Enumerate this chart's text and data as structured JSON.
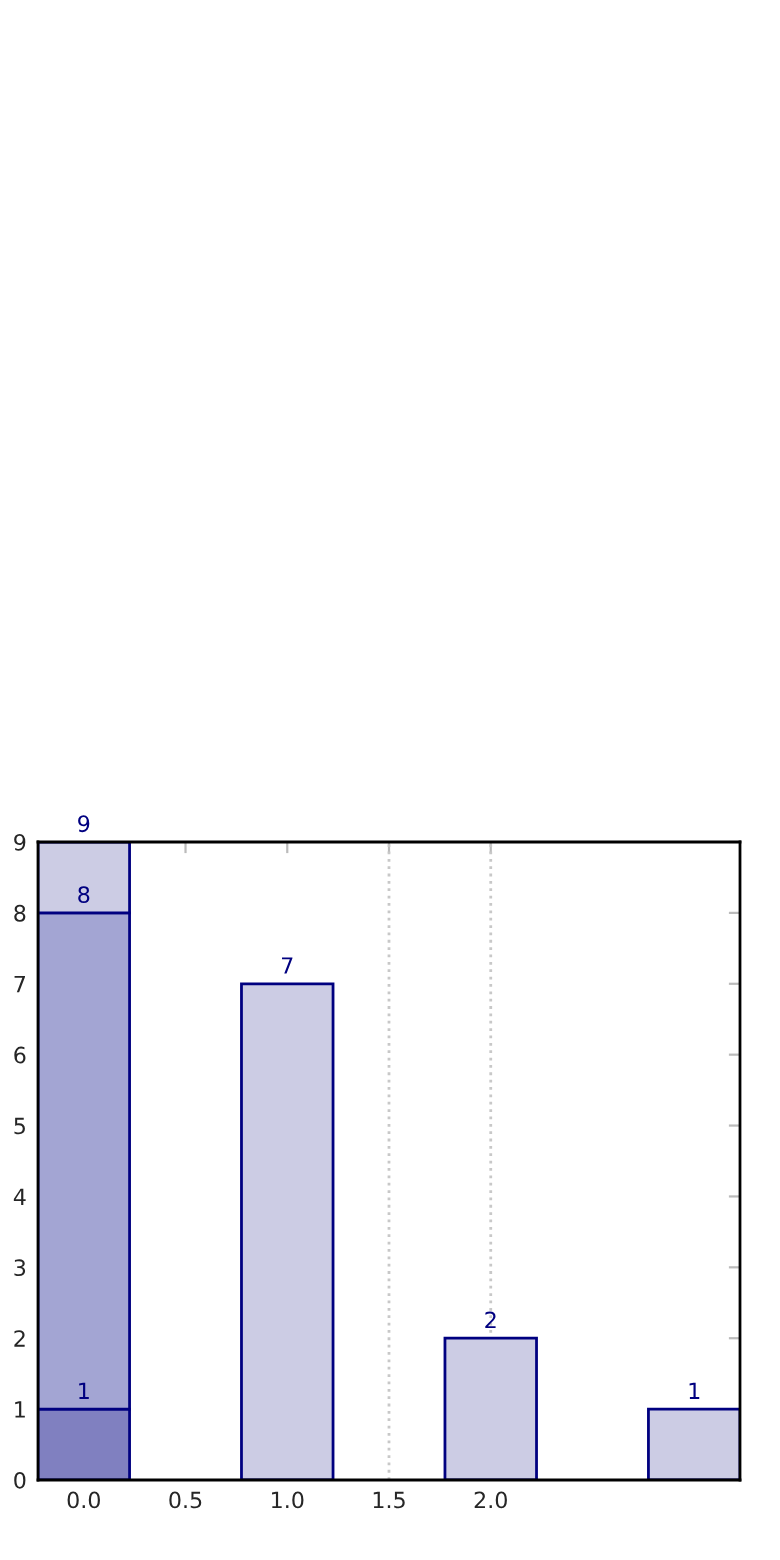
{
  "chart_data": {
    "type": "bar",
    "stacked": true,
    "series": [
      {
        "x": [
          0
        ],
        "values": [
          1
        ],
        "color": "#8080c0",
        "value_labels": [
          "1"
        ]
      },
      {
        "x": [
          0
        ],
        "values": [
          7
        ],
        "color": "#a3a5d3"
      },
      {
        "x": [
          0,
          1,
          2,
          3
        ],
        "values": [
          1,
          7,
          2,
          1
        ],
        "color": "#ccccE4"
      }
    ],
    "totals": [
      "9",
      "7",
      "2",
      "1"
    ],
    "annotations": [
      {
        "text": "8",
        "x": 0,
        "y": 8
      }
    ],
    "xlim": [
      -0.225,
      3.225
    ],
    "xticks": [
      {
        "value": 0,
        "label": "0.0"
      },
      {
        "value": 0.5,
        "label": "0.5"
      },
      {
        "value": 1,
        "label": "1.0"
      },
      {
        "value": 1.5,
        "label": "1.5"
      },
      {
        "value": 2,
        "label": "2.0"
      }
    ],
    "ylim": [
      0,
      9
    ],
    "yticks": [
      0,
      1,
      2,
      3,
      4,
      5,
      6,
      7,
      8,
      9
    ],
    "ref_lines": [
      {
        "axis": "x",
        "value": 1.5,
        "color": "#c8c8c8",
        "line_style": "dotted"
      },
      {
        "axis": "x",
        "value": 2,
        "color": "#c8c8c8",
        "line_style": "dotted"
      }
    ],
    "grid": false,
    "legend": false
  }
}
